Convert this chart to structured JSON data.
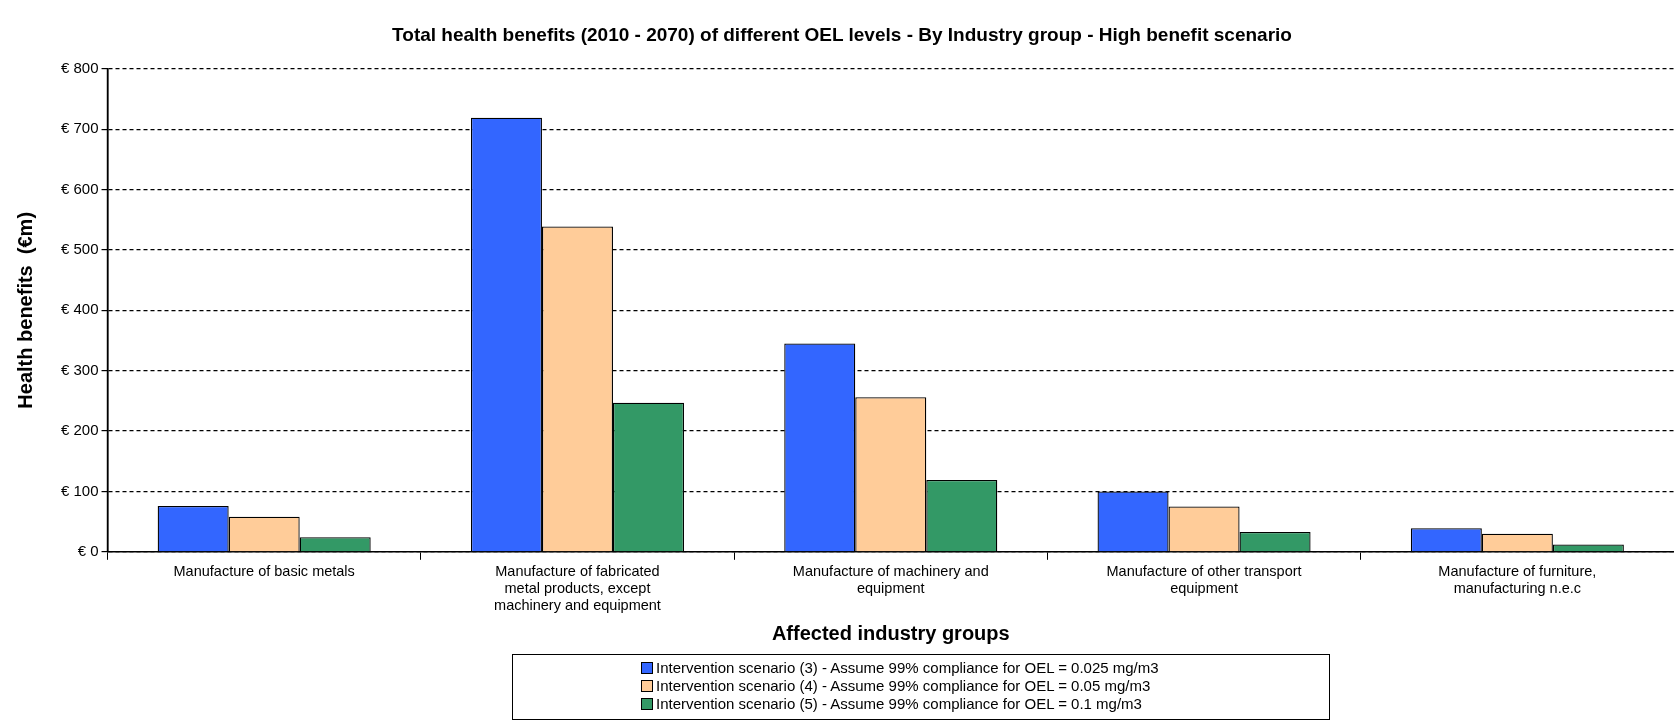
{
  "chart_data": {
    "type": "bar",
    "title": "Total health benefits (2010 - 2070) of different OEL levels - By Industry group - High benefit scenario",
    "xlabel": "Affected industry groups",
    "ylabel": "Health benefits  (€m)",
    "categories": [
      "Manufacture of basic metals",
      "Manufacture of fabricated metal products, except machinery and equipment",
      "Manufacture of machinery and equipment",
      "Manufacture of other transport equipment",
      "Manufacture of furniture, manufacturing n.e.c"
    ],
    "series": [
      {
        "name": "Intervention scenario (3) - Assume 99% compliance for OEL = 0.025 mg/m3",
        "color": "#3366ff",
        "values": [
          76,
          719,
          345,
          100,
          39
        ]
      },
      {
        "name": "Intervention scenario (4) - Assume 99% compliance for OEL = 0.05 mg/m3",
        "color": "#ffcc99",
        "values": [
          58,
          539,
          256,
          75,
          30
        ]
      },
      {
        "name": "Intervention scenario (5) - Assume 99% compliance for OEL = 0.1 mg/m3",
        "color": "#339966",
        "values": [
          24,
          247,
          119,
          33,
          12
        ]
      }
    ],
    "ylim": [
      0,
      800
    ],
    "yticks": [
      {
        "value": 0,
        "label": "€ 0"
      },
      {
        "value": 100,
        "label": "€ 100"
      },
      {
        "value": 200,
        "label": "€ 200"
      },
      {
        "value": 300,
        "label": "€ 300"
      },
      {
        "value": 400,
        "label": "€ 400"
      },
      {
        "value": 500,
        "label": "€ 500"
      },
      {
        "value": 600,
        "label": "€ 600"
      },
      {
        "value": 700,
        "label": "€ 700"
      },
      {
        "value": 800,
        "label": "€ 800"
      }
    ],
    "grid": "y",
    "legend": "bottom"
  }
}
